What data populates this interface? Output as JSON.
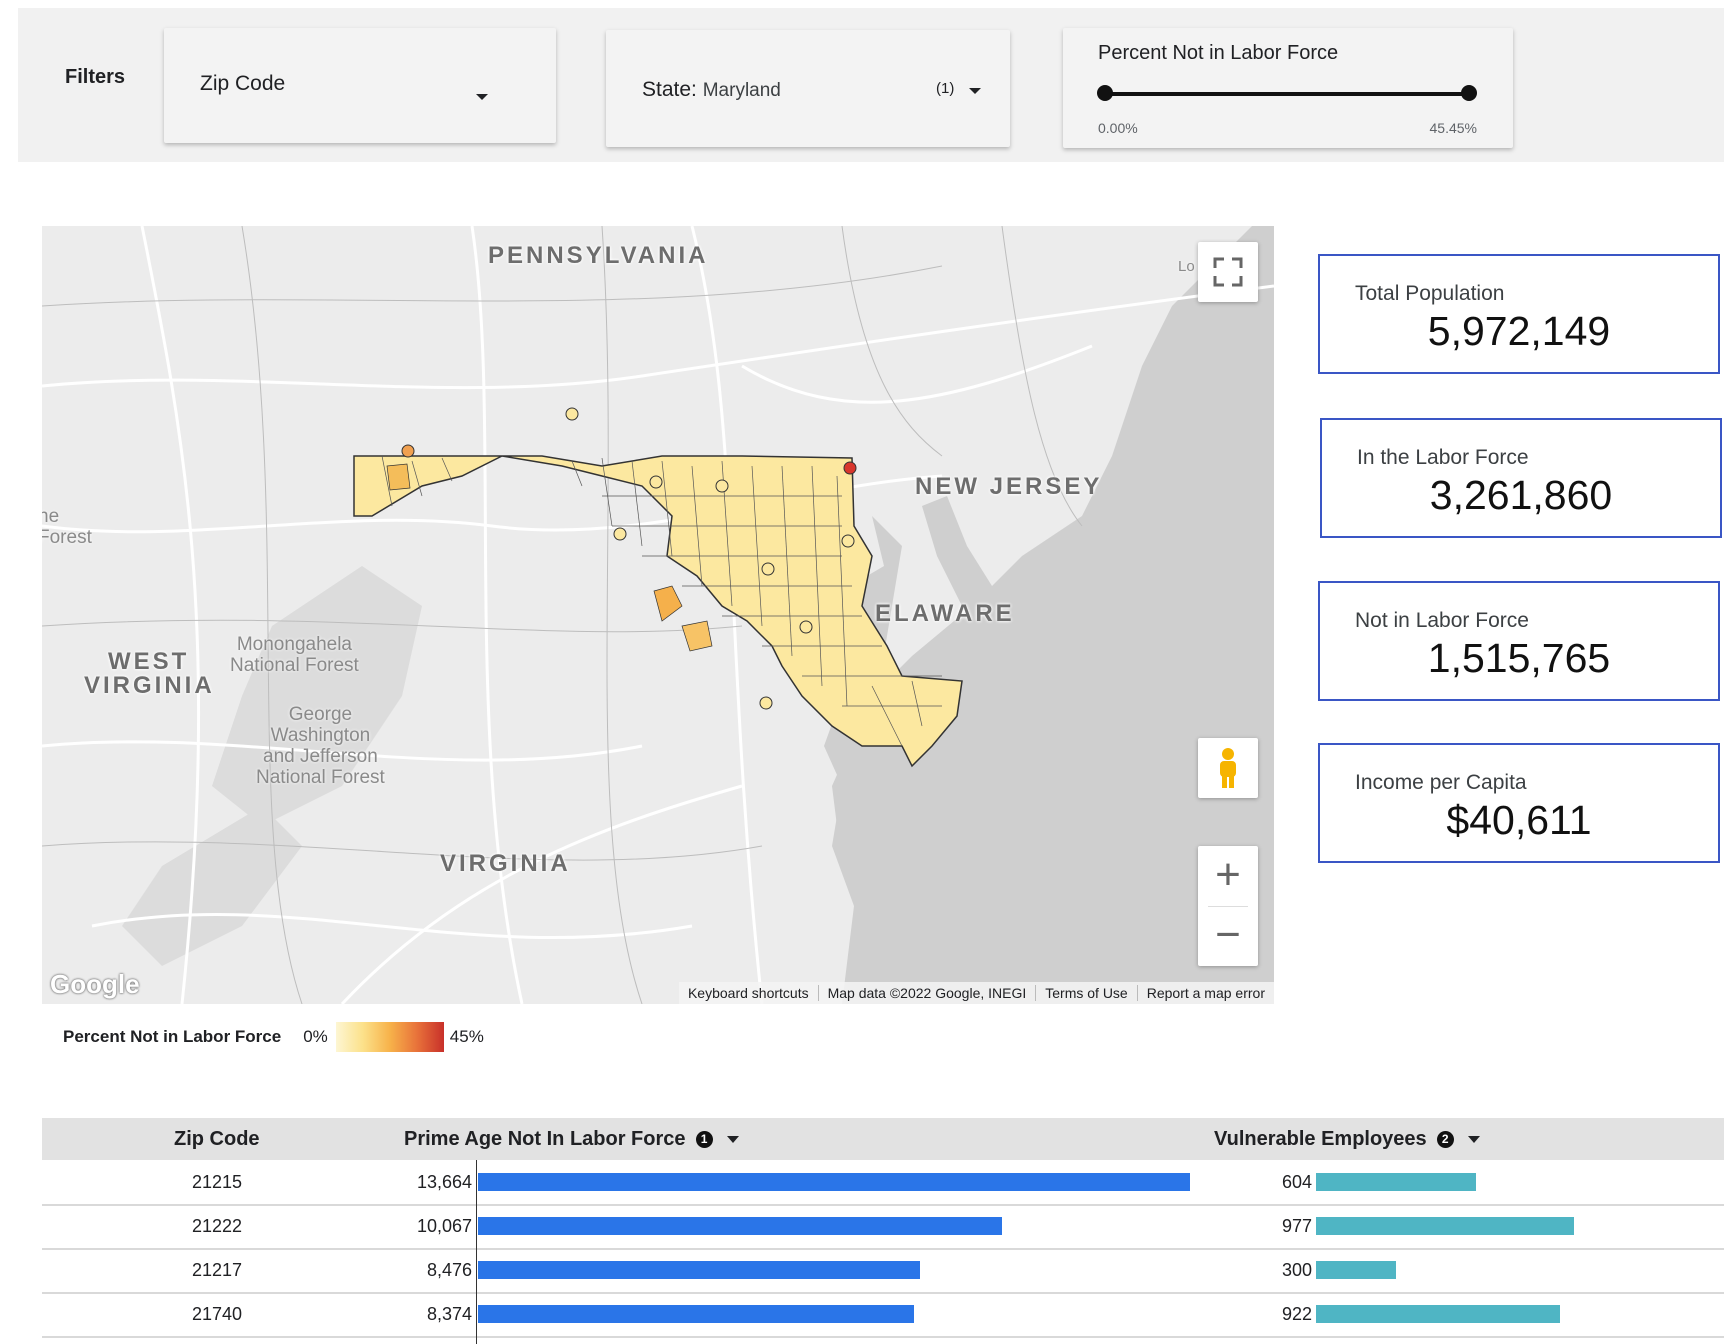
{
  "filters": {
    "label": "Filters",
    "zip_code": {
      "label": "Zip Code"
    },
    "state": {
      "label": "State",
      "value": "Maryland",
      "count": "(1)"
    },
    "percent_slider": {
      "title": "Percent Not in Labor Force",
      "min_label": "0.00%",
      "max_label": "45.45%",
      "low_value": 0.0,
      "high_value": 45.45
    }
  },
  "map": {
    "labels": {
      "pennsylvania": "PENNSYLVANIA",
      "new_jersey": "NEW JERSEY",
      "delaware": "ELAWARE",
      "west": "WEST",
      "virginia_wv": "VIRGINIA",
      "virginia": "VIRGINIA",
      "monongahela_1": "Monongahela",
      "monongahela_2": "National Forest",
      "gw_1": "George",
      "gw_2": "Washington",
      "gw_3": "and Jefferson",
      "gw_4": "National Forest",
      "forest_cut_1": "ne",
      "forest_cut_2": "Forest",
      "long_island_cut": "Lo          d"
    },
    "logo": "Google",
    "footer": {
      "keyboard": "Keyboard shortcuts",
      "map_data": "Map data ©2022 Google, INEGI",
      "terms": "Terms of Use",
      "report": "Report a map error"
    },
    "icons": {
      "fullscreen": "fullscreen-icon",
      "pegman": "pegman-icon",
      "zoom_in": "+",
      "zoom_out": "−"
    }
  },
  "legend": {
    "title": "Percent Not in Labor Force",
    "min": "0%",
    "max": "45%"
  },
  "kpis": [
    {
      "label": "Total Population",
      "value": "5,972,149"
    },
    {
      "label": "In the Labor Force",
      "value": "3,261,860"
    },
    {
      "label": "Not in Labor Force",
      "value": "1,515,765"
    },
    {
      "label": "Income per Capita",
      "value": "$40,611"
    }
  ],
  "table": {
    "headers": {
      "zip": "Zip Code",
      "prime": "Prime Age Not In Labor Force",
      "prime_info": "1",
      "vulnerable": "Vulnerable Employees",
      "vulnerable_info": "2"
    },
    "rows": [
      {
        "zip": "21215",
        "prime": "13,664",
        "vulnerable": "604"
      },
      {
        "zip": "21222",
        "prime": "10,067",
        "vulnerable": "977"
      },
      {
        "zip": "21217",
        "prime": "8,476",
        "vulnerable": "300"
      },
      {
        "zip": "21740",
        "prime": "8,374",
        "vulnerable": "922"
      }
    ]
  },
  "colors": {
    "accent_blue": "#2a75e8",
    "accent_teal": "#4fb5c4",
    "kpi_border": "#3a56c5"
  }
}
